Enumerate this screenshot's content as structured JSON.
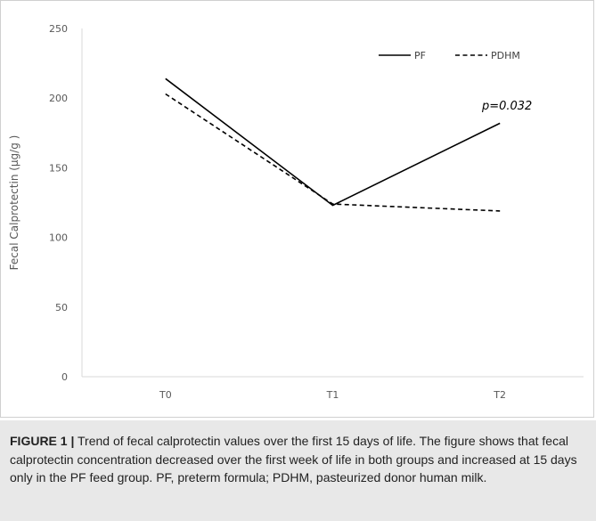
{
  "chart_data": {
    "type": "line",
    "categories": [
      "T0",
      "T1",
      "T2"
    ],
    "series": [
      {
        "name": "PF",
        "values": [
          214,
          123,
          182
        ],
        "style": "solid",
        "color": "#000000"
      },
      {
        "name": "PDHM",
        "values": [
          203,
          124,
          119
        ],
        "style": "dashed",
        "color": "#000000"
      }
    ],
    "ylabel": "Fecal Calprotectin (μg/g )",
    "ylim": [
      0,
      250
    ],
    "yticks": [
      0,
      50,
      100,
      150,
      200,
      250
    ],
    "grid": false,
    "legend": "top-right",
    "annotations": [
      {
        "text": "p=0.032",
        "category": "T2",
        "y": 195
      }
    ]
  },
  "caption": {
    "label": "FIGURE 1 |",
    "text": " Trend of fecal calprotectin values over the first 15 days of life. The figure shows that fecal calprotectin concentration decreased over the first week of life in both groups and increased at 15 days only in the PF feed group. PF, preterm formula; PDHM, pasteurized donor human milk."
  }
}
